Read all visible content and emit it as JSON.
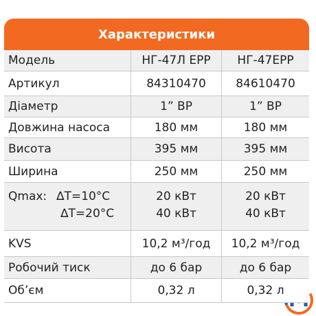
{
  "header": {
    "title": "Характеристики"
  },
  "table": {
    "rows": [
      {
        "label": "Модель",
        "cells": [
          "НГ-47Л ЕРР",
          "НГ-47ЕРР"
        ]
      },
      {
        "label": "Артикул",
        "cells": [
          "84310470",
          "84610470"
        ]
      },
      {
        "label": "Діаметр",
        "cells": [
          "1” ВР",
          "1” ВР"
        ]
      },
      {
        "label": "Довжина насоса",
        "cells": [
          "180 мм",
          "180 мм"
        ]
      },
      {
        "label": "Висота",
        "cells": [
          "395 мм",
          "395 мм"
        ]
      },
      {
        "label": "Ширина",
        "cells": [
          "250 мм",
          "250 мм"
        ]
      },
      {
        "label": "Qmax:",
        "conditions": [
          "∆T=10°C",
          "∆T=20°C"
        ],
        "cells": [
          [
            "20 кВт",
            "40 кВт"
          ],
          [
            "20 кВт",
            "40 кВт"
          ]
        ]
      },
      {
        "label": "KVS",
        "cells": [
          "10,2 м³/год",
          "10,2 м³/год"
        ]
      },
      {
        "label": "Робочий тиск",
        "cells": [
          "до 6 бар",
          "до 6 бар"
        ]
      },
      {
        "label": "Об’єм",
        "cells": [
          "0,32 л",
          "0,32 л"
        ]
      }
    ]
  }
}
